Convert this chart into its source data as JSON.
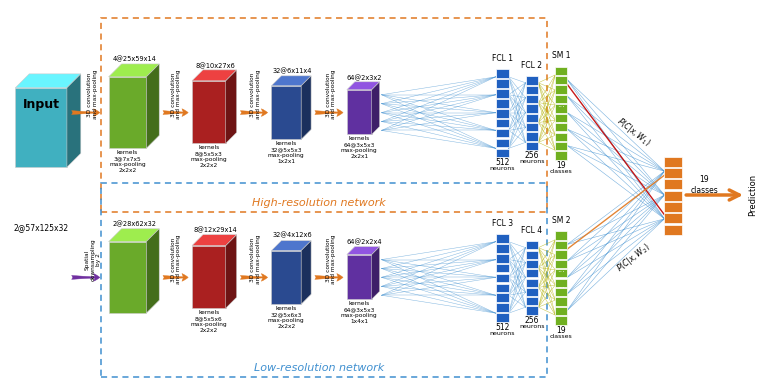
{
  "bg_color": "#ffffff",
  "input_label": "Input",
  "input_dim": "2@57x125x32",
  "high_res_label": "High-resolution network",
  "low_res_label": "Low-resolution network",
  "cube_colors": {
    "green": "#6aaa2a",
    "red": "#aa2020",
    "blue": "#2a4a90",
    "purple": "#6030a0",
    "teal": "#40b0c0"
  },
  "high_top_labels": [
    "4@25x59x14",
    "8@10x27x6",
    "32@6x11x4",
    "64@2x3x2"
  ],
  "high_bot_labels": [
    "kernels\n3@7x7x5\nmax-pooling\n2x2x2",
    "kernels\n8@5x5x3\nmax-pooling\n2x2x2",
    "kernels\n32@5x5x3\nmax-pooling\n1x2x1",
    "kernels\n64@3x5x3\nmax-pooling\n2x2x1"
  ],
  "low_top_labels": [
    "2@28x62x32",
    "8@12x29x14",
    "32@4x12x6",
    "64@2x2x4"
  ],
  "low_bot_labels": [
    "",
    "kernels\n8@5x5x6\nmax-pooling\n2x2x2",
    "kernels\n32@5x6x3\nmax-pooling\n2x2x2",
    "kernels\n64@3x5x3\nmax-pooling\n1x4x1"
  ],
  "conv_label": "3D convolution\nand max-pooling",
  "spatial_label": "Spatial\ndownsampling\nby 2",
  "fcl_color": "#2060c0",
  "sm_color": "#70b020",
  "pred_color": "#e07820",
  "orange": "#e07820",
  "purple_arrow": "#7030a0",
  "line_blue": "#4090d0",
  "line_yellow": "#b0b000",
  "line_red": "#c00000",
  "line_orange": "#e07820",
  "high_box_edge": "#e07820",
  "low_box_edge": "#4090d0"
}
